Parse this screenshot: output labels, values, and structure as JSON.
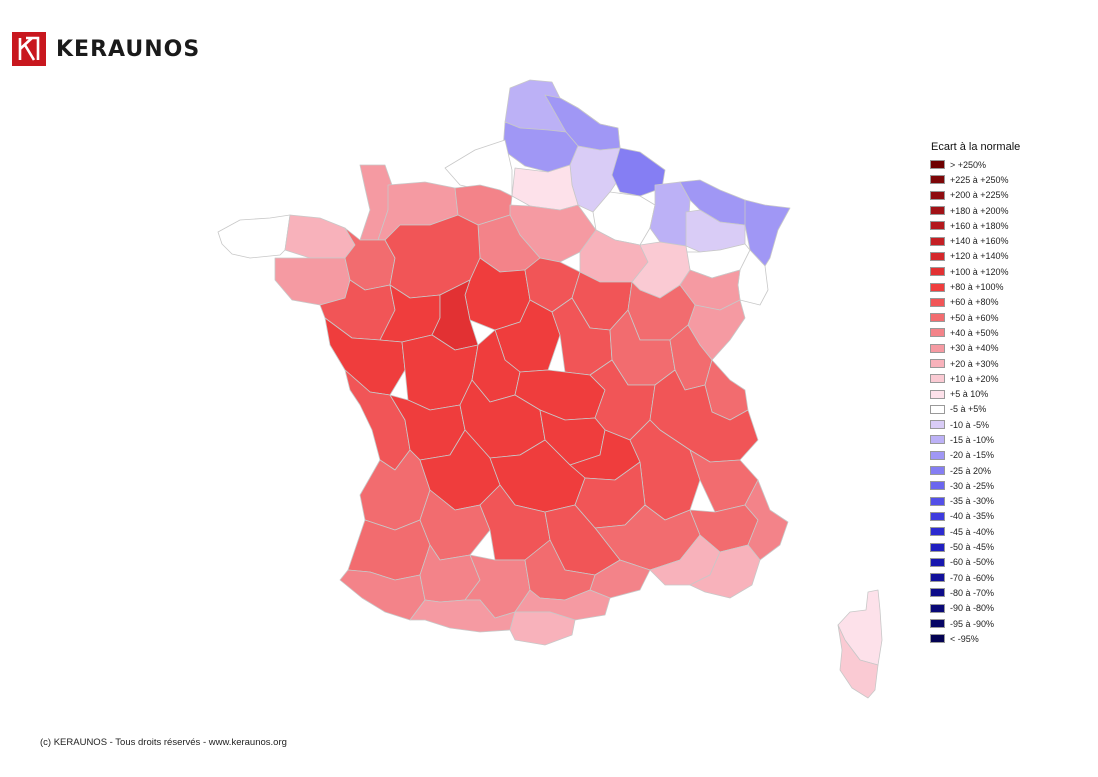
{
  "brand": {
    "name": "KERAUNOS",
    "color": "#c8171e"
  },
  "legend": {
    "title": "Ecart à la normale",
    "items": [
      {
        "label": "> +250%",
        "color": "#6e0000"
      },
      {
        "label": "+225 à +250%",
        "color": "#7d0608"
      },
      {
        "label": "+200 à +225%",
        "color": "#8f0c10"
      },
      {
        "label": "+180 à +200%",
        "color": "#a11217"
      },
      {
        "label": "+160 à +180%",
        "color": "#b3181d"
      },
      {
        "label": "+140 à +160%",
        "color": "#c41f24"
      },
      {
        "label": "+120 à +140%",
        "color": "#d4272b"
      },
      {
        "label": "+100 à +120%",
        "color": "#e23133"
      },
      {
        "label": "+80 à +100%",
        "color": "#ef3d3d"
      },
      {
        "label": "+60 à +80%",
        "color": "#f15557"
      },
      {
        "label": "+50 à +60%",
        "color": "#f26c6f"
      },
      {
        "label": "+40 à +50%",
        "color": "#f38389"
      },
      {
        "label": "+30 à +40%",
        "color": "#f59aa2"
      },
      {
        "label": "+20 à +30%",
        "color": "#f8b2bb"
      },
      {
        "label": "+10 à +20%",
        "color": "#facad3"
      },
      {
        "label": "+5 à 10%",
        "color": "#fde1ea"
      },
      {
        "label": "-5 à +5%",
        "color": "#ffffff"
      },
      {
        "label": "-10 à -5%",
        "color": "#d9ccf6"
      },
      {
        "label": "-15 à -10%",
        "color": "#bcb1f6"
      },
      {
        "label": "-20 à -15%",
        "color": "#a097f5"
      },
      {
        "label": "-25 à 20%",
        "color": "#857ef3"
      },
      {
        "label": "-30 à -25%",
        "color": "#6b66ef"
      },
      {
        "label": "-35 à -30%",
        "color": "#534fe8"
      },
      {
        "label": "-40 à -35%",
        "color": "#3e3bde"
      },
      {
        "label": "-45 à -40%",
        "color": "#2c2ad0"
      },
      {
        "label": "-50 à -45%",
        "color": "#201fc0"
      },
      {
        "label": "-60 à -50%",
        "color": "#1817ae"
      },
      {
        "label": "-70 à -60%",
        "color": "#12119b"
      },
      {
        "label": "-80 à -70%",
        "color": "#0d0c88"
      },
      {
        "label": "-90 à -80%",
        "color": "#090876"
      },
      {
        "label": "-95 à -90%",
        "color": "#060564"
      },
      {
        "label": "< -95%",
        "color": "#030252"
      }
    ]
  },
  "regions": [
    {
      "name": "nord",
      "color": "#bcb1f6"
    },
    {
      "name": "nord-east-strip",
      "color": "#a097f5"
    },
    {
      "name": "pas-de-calais",
      "color": "#a097f5"
    },
    {
      "name": "aisne",
      "color": "#d9ccf6"
    },
    {
      "name": "ardennes",
      "color": "#857ef3"
    },
    {
      "name": "somme",
      "color": "#fde1ea"
    },
    {
      "name": "seine-maritime",
      "color": "#ffffff"
    },
    {
      "name": "marne",
      "color": "#ffffff"
    },
    {
      "name": "meuse",
      "color": "#bcb1f6"
    },
    {
      "name": "moselle",
      "color": "#a097f5"
    },
    {
      "name": "meurthe-et-moselle",
      "color": "#d9ccf6"
    },
    {
      "name": "bas-rhin",
      "color": "#a097f5"
    },
    {
      "name": "vosges",
      "color": "#ffffff"
    },
    {
      "name": "haut-rhin",
      "color": "#ffffff"
    },
    {
      "name": "bretagne",
      "color": "#ffffff"
    },
    {
      "name": "cotes-d-armor",
      "color": "#f8b2bb"
    },
    {
      "name": "morbihan",
      "color": "#f59aa2"
    },
    {
      "name": "manche",
      "color": "#f59aa2"
    },
    {
      "name": "calvados-orne",
      "color": "#f59aa2"
    },
    {
      "name": "eure",
      "color": "#f38389"
    },
    {
      "name": "oise-val-d-oise",
      "color": "#f59aa2"
    },
    {
      "name": "ile-de-france",
      "color": "#f38389"
    },
    {
      "name": "aube",
      "color": "#f8b2bb"
    },
    {
      "name": "haute-marne",
      "color": "#facad3"
    },
    {
      "name": "haute-saone",
      "color": "#f59aa2"
    },
    {
      "name": "doubs-jura",
      "color": "#f59aa2"
    },
    {
      "name": "ille-et-vilaine",
      "color": "#f26c6f"
    },
    {
      "name": "mayenne-sarthe",
      "color": "#f15557"
    },
    {
      "name": "loir-et-cher",
      "color": "#ef3d3d"
    },
    {
      "name": "loiret",
      "color": "#f15557"
    },
    {
      "name": "yonne",
      "color": "#f15557"
    },
    {
      "name": "cote-d-or",
      "color": "#f26c6f"
    },
    {
      "name": "loire-atlantique",
      "color": "#f15557"
    },
    {
      "name": "maine-et-loire",
      "color": "#ef3d3d"
    },
    {
      "name": "indre-et-loire",
      "color": "#e23133"
    },
    {
      "name": "cher",
      "color": "#ef3d3d"
    },
    {
      "name": "nievre",
      "color": "#f15557"
    },
    {
      "name": "saone-et-loire",
      "color": "#f26c6f"
    },
    {
      "name": "ain",
      "color": "#f26c6f"
    },
    {
      "name": "haute-savoie",
      "color": "#f26c6f"
    },
    {
      "name": "vendee",
      "color": "#ef3d3d"
    },
    {
      "name": "deux-sevres-vienne",
      "color": "#ef3d3d"
    },
    {
      "name": "indre",
      "color": "#ef3d3d"
    },
    {
      "name": "allier",
      "color": "#ef3d3d"
    },
    {
      "name": "loire-rhone",
      "color": "#f15557"
    },
    {
      "name": "savoie-isere",
      "color": "#f15557"
    },
    {
      "name": "charente-maritime",
      "color": "#f15557"
    },
    {
      "name": "charente",
      "color": "#ef3d3d"
    },
    {
      "name": "haute-vienne-creuse",
      "color": "#ef3d3d"
    },
    {
      "name": "puy-de-dome",
      "color": "#ef3d3d"
    },
    {
      "name": "haute-loire",
      "color": "#ef3d3d"
    },
    {
      "name": "drome-ardeche",
      "color": "#f15557"
    },
    {
      "name": "hautes-alpes",
      "color": "#f26c6f"
    },
    {
      "name": "gironde",
      "color": "#f26c6f"
    },
    {
      "name": "dordogne",
      "color": "#ef3d3d"
    },
    {
      "name": "correze-cantal",
      "color": "#ef3d3d"
    },
    {
      "name": "lozere",
      "color": "#f15557"
    },
    {
      "name": "gard-vaucluse",
      "color": "#f26c6f"
    },
    {
      "name": "alpes-de-haute-provence",
      "color": "#f26c6f"
    },
    {
      "name": "alpes-maritimes",
      "color": "#f38389"
    },
    {
      "name": "landes",
      "color": "#f26c6f"
    },
    {
      "name": "lot-et-garonne",
      "color": "#f26c6f"
    },
    {
      "name": "lot-tarn-et-garonne",
      "color": "#f15557"
    },
    {
      "name": "aveyron",
      "color": "#f15557"
    },
    {
      "name": "herault",
      "color": "#f38389"
    },
    {
      "name": "bouches-du-rhone",
      "color": "#f8b2bb"
    },
    {
      "name": "var",
      "color": "#f8b2bb"
    },
    {
      "name": "pyrenees-atlantiques",
      "color": "#f38389"
    },
    {
      "name": "gers",
      "color": "#f38389"
    },
    {
      "name": "haute-garonne",
      "color": "#f38389"
    },
    {
      "name": "tarn",
      "color": "#f26c6f"
    },
    {
      "name": "aude",
      "color": "#f59aa2"
    },
    {
      "name": "hautes-pyrenees-ariege",
      "color": "#f59aa2"
    },
    {
      "name": "pyrenees-orientales",
      "color": "#f8b2bb"
    },
    {
      "name": "haute-corse",
      "color": "#fde1ea"
    },
    {
      "name": "corse-du-sud",
      "color": "#facad3"
    }
  ],
  "footer": {
    "copyright": "(c) KERAUNOS - Tous droits réservés - www.keraunos.org"
  }
}
